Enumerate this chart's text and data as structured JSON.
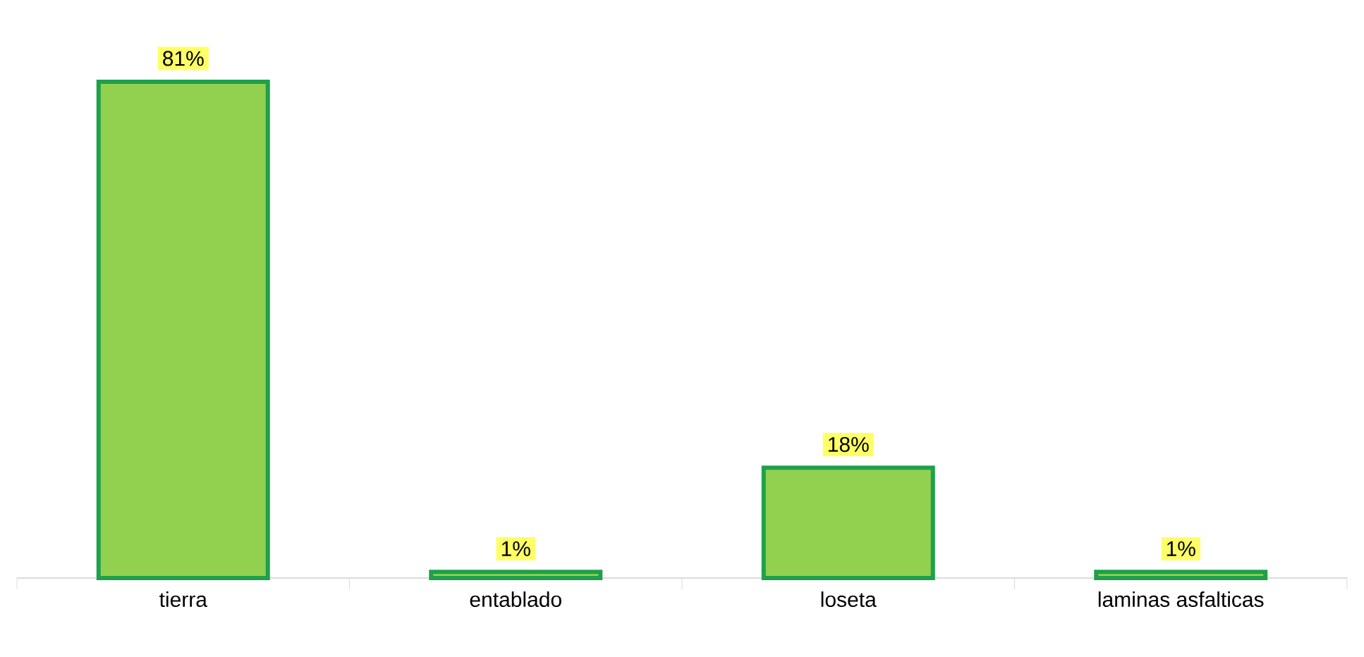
{
  "chart_data": {
    "type": "bar",
    "categories": [
      "tierra",
      "entablado",
      "loseta",
      "laminas asfalticas"
    ],
    "values": [
      81,
      1,
      18,
      1
    ],
    "color": "#92d050",
    "value_labels": [
      "81%",
      "1%",
      "18%",
      "1%"
    ]
  }
}
